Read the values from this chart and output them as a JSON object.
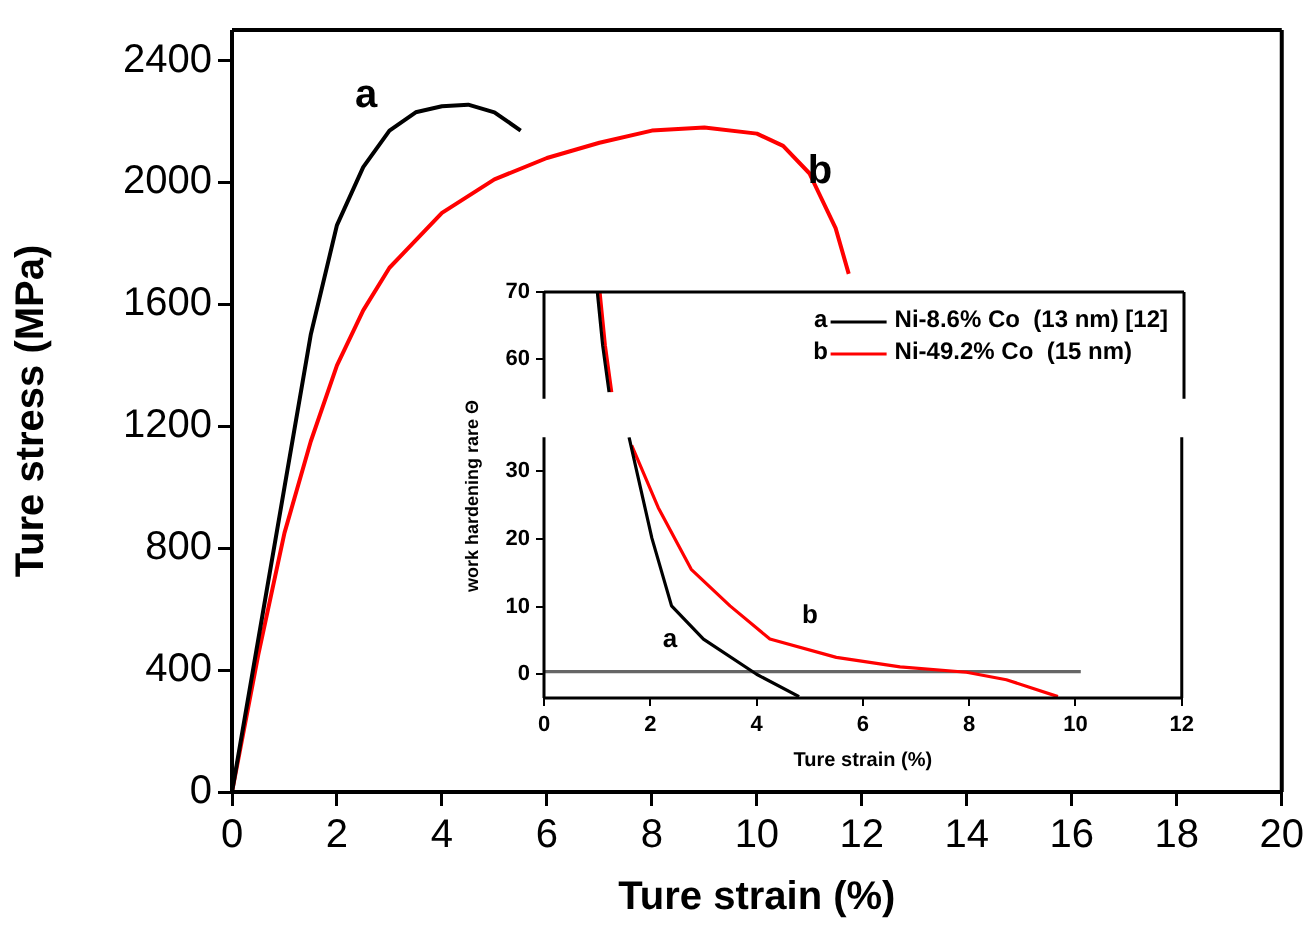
{
  "chart_data": [
    {
      "type": "line",
      "xlabel": "Ture strain (%)",
      "ylabel": "Ture stress (MPa)",
      "xlim": [
        0,
        20
      ],
      "ylim": [
        0,
        2500
      ],
      "xticks": [
        0,
        2,
        4,
        6,
        8,
        10,
        12,
        14,
        16,
        18,
        20
      ],
      "yticks": [
        0,
        400,
        800,
        1200,
        1600,
        2000,
        2400
      ],
      "series": [
        {
          "color": "#000000",
          "x": [
            0,
            0.5,
            1,
            1.5,
            2,
            2.5,
            3,
            3.5,
            4,
            4.5,
            5,
            5.5
          ],
          "values": [
            0,
            500,
            1000,
            1500,
            1860,
            2050,
            2170,
            2230,
            2250,
            2255,
            2230,
            2170
          ]
        },
        {
          "color": "#ff0000",
          "x": [
            0,
            0.5,
            1,
            1.5,
            2,
            2.5,
            3,
            4,
            5,
            6,
            7,
            8,
            9,
            10,
            10.5,
            11,
            11.5,
            11.75
          ],
          "values": [
            0,
            450,
            850,
            1150,
            1400,
            1580,
            1720,
            1900,
            2010,
            2080,
            2130,
            2170,
            2180,
            2160,
            2120,
            2030,
            1850,
            1700
          ]
        }
      ],
      "annotations": [
        "a",
        "b"
      ]
    },
    {
      "type": "line",
      "xlim": [
        0,
        12
      ],
      "ylim": [
        54,
        70
      ],
      "yticks": [
        60,
        70
      ],
      "tick_labels": "y",
      "legend": "top right",
      "series": [
        {
          "name": "Ni-8.6% Co  (13 nm) [12]",
          "color": "#000000",
          "x": [
            1.0,
            1.1,
            1.22
          ],
          "values": [
            70,
            62,
            55
          ]
        },
        {
          "name": "Ni-49.2% Co  (15 nm)",
          "color": "#ff0000",
          "x": [
            1.05,
            1.15,
            1.27
          ],
          "values": [
            70,
            62,
            55
          ]
        }
      ],
      "annotations": [
        "a",
        "b"
      ]
    },
    {
      "type": "line",
      "xlabel": "Ture strain (%)",
      "ylabel": "work hardening rare Θ",
      "xlim": [
        0,
        12
      ],
      "ylim": [
        -3.5,
        35
      ],
      "xticks": [
        0,
        2,
        4,
        6,
        8,
        10,
        12
      ],
      "yticks": [
        0,
        10,
        20,
        30
      ],
      "series": [
        {
          "color": "#000000",
          "x": [
            1.6,
            2.03,
            2.4,
            3.0,
            4.0,
            4.8
          ],
          "values": [
            35,
            20.1,
            10.1,
            5.2,
            0,
            -3.3
          ]
        },
        {
          "color": "#ff0000",
          "x": [
            1.65,
            2.15,
            2.77,
            3.5,
            4.25,
            5.5,
            6.7,
            7.95,
            8.7,
            9.67
          ],
          "values": [
            33.8,
            24.6,
            15.5,
            10.1,
            5.2,
            2.5,
            1.1,
            0.3,
            -0.8,
            -3.3
          ]
        },
        {
          "color": "#666666",
          "x": [
            0,
            10.1
          ],
          "values": [
            0.4,
            0.4
          ]
        }
      ],
      "annotations": [
        "a",
        "b"
      ]
    }
  ]
}
